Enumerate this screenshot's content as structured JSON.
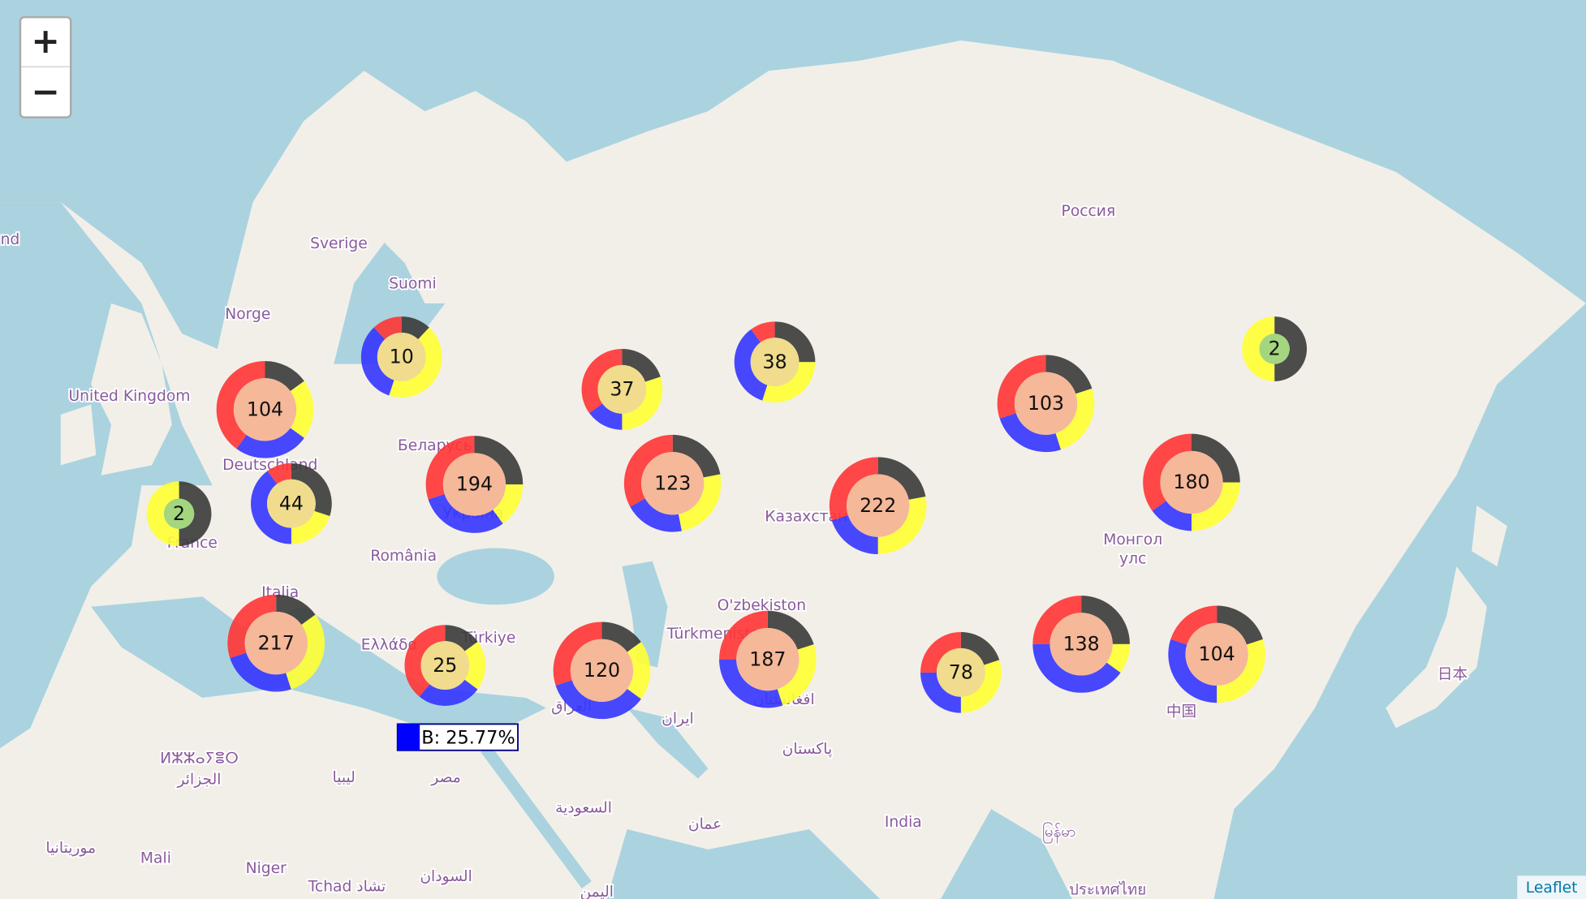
{
  "zoom_controls": {
    "zoom_in": "+",
    "zoom_out": "−"
  },
  "segment_colors": [
    "#3a3a3a",
    "#ffff33",
    "#3434ff",
    "#ff3434"
  ],
  "clusters": [
    {
      "count": 104,
      "shares": [
        15,
        20,
        25,
        40
      ]
    },
    {
      "count": 10,
      "shares": [
        12,
        43,
        33,
        12
      ]
    },
    {
      "count": 37,
      "shares": [
        20,
        30,
        15,
        35
      ]
    },
    {
      "count": 38,
      "shares": [
        25,
        30,
        35,
        10
      ]
    },
    {
      "count": 2,
      "shares": [
        50,
        50
      ]
    },
    {
      "count": 103,
      "shares": [
        20,
        25,
        25,
        30
      ]
    },
    {
      "count": 194,
      "shares": [
        25,
        15,
        30,
        30
      ]
    },
    {
      "count": 123,
      "shares": [
        22,
        25,
        20,
        33
      ]
    },
    {
      "count": 222,
      "shares": [
        22,
        28,
        20,
        30
      ]
    },
    {
      "count": 180,
      "shares": [
        25,
        25,
        15,
        35
      ]
    },
    {
      "count": 2,
      "shares": [
        50,
        50
      ]
    },
    {
      "count": 44,
      "shares": [
        30,
        20,
        40,
        10
      ]
    },
    {
      "count": 217,
      "shares": [
        15,
        30,
        25,
        30
      ]
    },
    {
      "count": 25,
      "shares": [
        15,
        20,
        25.77,
        39
      ]
    },
    {
      "count": 120,
      "shares": [
        15,
        20,
        35,
        30
      ]
    },
    {
      "count": 187,
      "shares": [
        20,
        25,
        30,
        25
      ]
    },
    {
      "count": 78,
      "shares": [
        20,
        30,
        25,
        25
      ]
    },
    {
      "count": 138,
      "shares": [
        25,
        10,
        40,
        25
      ]
    },
    {
      "count": 104,
      "shares": [
        20,
        30,
        30,
        20
      ]
    }
  ],
  "place_labels": [
    "nd",
    "Sverige",
    "Suomi",
    "Norge",
    "United Kingdom",
    "Deutschland",
    "Беларусь",
    "Україна",
    "France",
    "România",
    "Italia",
    "Ελλάδα",
    "Türkiye",
    "Россия",
    "Казахстан",
    "Монгол",
    "улс",
    "O'zbekiston",
    "Türkmenistan",
    "ایران",
    "العراق",
    "افغانستان",
    "پاکستان",
    "India",
    "中国",
    "日本",
    "ⵍⵣⵣⴰⵢⴻⵔ",
    "الجزائر",
    "ليبيا",
    "مصر",
    "السعودية",
    "عمان",
    "موريتانيا",
    "Mali",
    "Niger",
    "Tchad تشاد",
    "السودان",
    "اليمن",
    "မြန်မာ",
    "ประเทศไทย"
  ],
  "tooltip": {
    "text": "B: 25.77%",
    "color": "#0000ff"
  },
  "attribution": "Leaflet"
}
